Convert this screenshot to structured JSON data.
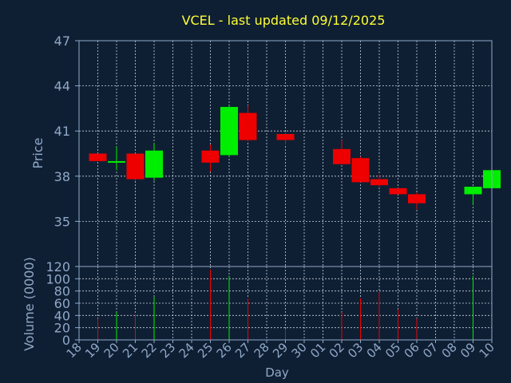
{
  "chart_data": {
    "type": "candlestick",
    "title": "VCEL - last updated 09/12/2025",
    "price_axis": {
      "label": "Price",
      "range": [
        32,
        47
      ],
      "ticks": [
        35,
        38,
        41,
        44,
        47
      ]
    },
    "volume_axis": {
      "label": "Volume (0000)",
      "range": [
        0,
        120
      ],
      "ticks": [
        0,
        20,
        40,
        60,
        80,
        100,
        120
      ]
    },
    "x_axis": {
      "label": "Day",
      "ticks": [
        "18",
        "19",
        "20",
        "21",
        "22",
        "23",
        "24",
        "25",
        "26",
        "27",
        "28",
        "29",
        "30",
        "01",
        "02",
        "03",
        "04",
        "05",
        "06",
        "07",
        "08",
        "09",
        "10"
      ]
    },
    "grid": true,
    "colors": {
      "background": "#0f1f33",
      "plot_border": "#8fa8c8",
      "grid": "#c8d0dc",
      "up": "#00ee00",
      "down": "#ee0000",
      "title": "#ffff33",
      "axis_text": "#8fa8c8"
    },
    "candles": [
      {
        "day_index": 0,
        "open": 39.5,
        "high": 39.5,
        "low": 39.0,
        "close": 39.0,
        "volume": 35
      },
      {
        "day_index": 1,
        "open": 38.9,
        "high": 40.0,
        "low": 38.4,
        "close": 39.0,
        "volume": 45
      },
      {
        "day_index": 2,
        "open": 39.5,
        "high": 39.5,
        "low": 37.7,
        "close": 37.8,
        "volume": 42
      },
      {
        "day_index": 3,
        "open": 37.9,
        "high": 40.2,
        "low": 37.7,
        "close": 39.7,
        "volume": 70
      },
      {
        "day_index": 6,
        "open": 39.7,
        "high": 40.1,
        "low": 38.3,
        "close": 38.9,
        "volume": 115
      },
      {
        "day_index": 7,
        "open": 39.4,
        "high": 42.7,
        "low": 39.3,
        "close": 42.6,
        "volume": 105
      },
      {
        "day_index": 8,
        "open": 42.2,
        "high": 42.7,
        "low": 40.3,
        "close": 40.4,
        "volume": 68
      },
      {
        "day_index": 10,
        "open": 40.8,
        "high": 40.9,
        "low": 40.1,
        "close": 40.4,
        "volume": 18
      },
      {
        "day_index": 13,
        "open": 39.8,
        "high": 40.4,
        "low": 38.8,
        "close": 38.8,
        "volume": 45
      },
      {
        "day_index": 14,
        "open": 39.2,
        "high": 39.3,
        "low": 37.6,
        "close": 37.6,
        "volume": 68
      },
      {
        "day_index": 15,
        "open": 37.8,
        "high": 38.1,
        "low": 37.3,
        "close": 37.4,
        "volume": 78
      },
      {
        "day_index": 16,
        "open": 37.2,
        "high": 37.2,
        "low": 36.8,
        "close": 36.8,
        "volume": 50
      },
      {
        "day_index": 17,
        "open": 36.8,
        "high": 36.9,
        "low": 35.8,
        "close": 36.2,
        "volume": 35
      },
      {
        "day_index": 20,
        "open": 36.8,
        "high": 37.3,
        "low": 36.1,
        "close": 37.3,
        "volume": 105
      },
      {
        "day_index": 21,
        "open": 37.2,
        "high": 38.7,
        "low": 37.2,
        "close": 38.4,
        "volume": 105
      }
    ]
  }
}
